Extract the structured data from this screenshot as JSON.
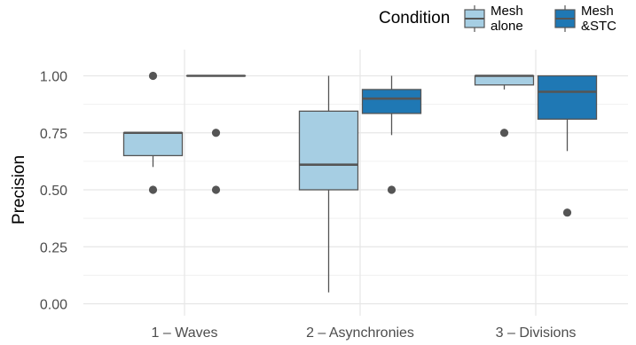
{
  "chart_data": {
    "type": "boxplot",
    "title": "",
    "xlabel": "",
    "ylabel": "Precision",
    "ylim": [
      0,
      1
    ],
    "yticks": [
      0.0,
      0.25,
      0.5,
      0.75,
      1.0
    ],
    "ytick_labels": [
      "0.00",
      "0.25",
      "0.50",
      "0.75",
      "1.00"
    ],
    "categories": [
      "1 – Waves",
      "2 – Asynchronies",
      "3 – Divisions"
    ],
    "grid": true,
    "legend": {
      "title": "Condition",
      "placement": "top-right",
      "entries": [
        {
          "line1": "Mesh",
          "line2": "alone",
          "color": "#a6cee3"
        },
        {
          "line1": "Mesh",
          "line2": "&STC",
          "color": "#1f78b4"
        }
      ]
    },
    "series": [
      {
        "color": "#a6cee3",
        "boxes": [
          {
            "category": "1 – Waves",
            "min": 0.6,
            "q1": 0.65,
            "median": 0.75,
            "q3": 0.75,
            "max": 0.75,
            "outliers": [
              1.0,
              0.5
            ]
          },
          {
            "category": "2 – Asynchronies",
            "min": 0.05,
            "q1": 0.5,
            "median": 0.61,
            "q3": 0.845,
            "max": 1.0,
            "outliers": []
          },
          {
            "category": "3 – Divisions",
            "min": 0.94,
            "q1": 0.96,
            "median": 1.0,
            "q3": 1.0,
            "max": 1.0,
            "outliers": [
              0.75
            ]
          }
        ]
      },
      {
        "color": "#1f78b4",
        "boxes": [
          {
            "category": "1 – Waves",
            "min": 1.0,
            "q1": 1.0,
            "median": 1.0,
            "q3": 1.0,
            "max": 1.0,
            "outliers": [
              0.75,
              0.5
            ]
          },
          {
            "category": "2 – Asynchronies",
            "min": 0.74,
            "q1": 0.835,
            "median": 0.9,
            "q3": 0.94,
            "max": 1.0,
            "outliers": [
              0.5
            ]
          },
          {
            "category": "3 – Divisions",
            "min": 0.67,
            "q1": 0.81,
            "median": 0.93,
            "q3": 1.0,
            "max": 1.0,
            "outliers": [
              0.4
            ]
          }
        ]
      }
    ]
  }
}
